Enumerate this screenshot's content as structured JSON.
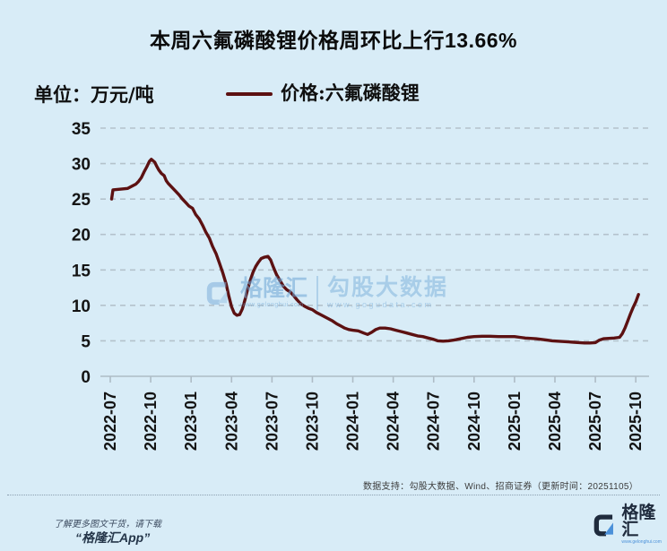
{
  "title": "本周六氟磷酸锂价格周环比上行13.66%",
  "unit_label": "单位：万元/吨",
  "legend": {
    "label": "价格:六氟磷酸锂",
    "line_color": "#5c1112"
  },
  "watermark": {
    "brand": "格隆汇",
    "brand_url": "www.gelonghui.com",
    "partner": "勾股大数据",
    "partner_url": "www.gogudata.com"
  },
  "source_note": "数据支持：勾股大数据、Wind、招商证券（更新时间：20251105）",
  "footer": {
    "promo_line1": "了解更多图文干货，请下载",
    "promo_line2": "“格隆汇App”",
    "brand": "格隆汇",
    "brand_url": "www.gelonghui.com"
  },
  "colors": {
    "background": "#d8ecf7",
    "line": "#5c1112",
    "grid": "#b4c2cc",
    "axis": "#aebcc6",
    "text": "#141414",
    "navy": "#1f2b3d",
    "blue_accent": "#4a90d9"
  },
  "chart_data": {
    "type": "line",
    "title": "本周六氟磷酸锂价格周环比上行13.66%",
    "xlabel": "",
    "ylabel": "单位：万元/吨",
    "ylim": [
      0,
      35
    ],
    "y_ticks": [
      0,
      5,
      10,
      15,
      20,
      25,
      30,
      35
    ],
    "grid": "horizontal-dashed",
    "legend_position": "top",
    "x_ticks": [
      "2022-07",
      "2022-10",
      "2023-01",
      "2023-04",
      "2023-07",
      "2023-10",
      "2024-01",
      "2024-04",
      "2024-07",
      "2024-10",
      "2025-01",
      "2025-04",
      "2025-07",
      "2025-10"
    ],
    "x_tick_months": [
      0,
      3,
      6,
      9,
      12,
      15,
      18,
      21,
      24,
      27,
      30,
      33,
      36,
      39
    ],
    "series": [
      {
        "name": "价格:六氟磷酸锂",
        "color": "#5c1112",
        "points": [
          [
            0.1,
            25.0
          ],
          [
            0.2,
            26.3
          ],
          [
            0.8,
            26.4
          ],
          [
            1.3,
            26.5
          ],
          [
            1.6,
            26.8
          ],
          [
            1.9,
            27.1
          ],
          [
            2.1,
            27.5
          ],
          [
            2.3,
            28.0
          ],
          [
            2.5,
            28.8
          ],
          [
            2.7,
            29.5
          ],
          [
            2.9,
            30.3
          ],
          [
            3.05,
            30.6
          ],
          [
            3.3,
            30.2
          ],
          [
            3.45,
            29.6
          ],
          [
            3.6,
            29.1
          ],
          [
            3.8,
            28.6
          ],
          [
            4.0,
            28.3
          ],
          [
            4.15,
            27.6
          ],
          [
            4.3,
            27.2
          ],
          [
            4.55,
            26.7
          ],
          [
            4.8,
            26.2
          ],
          [
            5.1,
            25.6
          ],
          [
            5.35,
            25.0
          ],
          [
            5.6,
            24.5
          ],
          [
            5.85,
            24.0
          ],
          [
            6.1,
            23.7
          ],
          [
            6.35,
            22.8
          ],
          [
            6.6,
            22.2
          ],
          [
            6.85,
            21.3
          ],
          [
            7.1,
            20.3
          ],
          [
            7.35,
            19.5
          ],
          [
            7.6,
            18.3
          ],
          [
            7.85,
            17.3
          ],
          [
            8.1,
            16.0
          ],
          [
            8.35,
            14.6
          ],
          [
            8.6,
            13.0
          ],
          [
            8.8,
            11.3
          ],
          [
            9.0,
            9.8
          ],
          [
            9.2,
            8.9
          ],
          [
            9.4,
            8.6
          ],
          [
            9.6,
            8.7
          ],
          [
            9.8,
            9.5
          ],
          [
            10.0,
            10.8
          ],
          [
            10.2,
            12.3
          ],
          [
            10.4,
            13.6
          ],
          [
            10.6,
            14.7
          ],
          [
            10.8,
            15.5
          ],
          [
            11.0,
            16.1
          ],
          [
            11.2,
            16.6
          ],
          [
            11.45,
            16.8
          ],
          [
            11.7,
            16.9
          ],
          [
            11.9,
            16.4
          ],
          [
            12.1,
            15.4
          ],
          [
            12.35,
            14.3
          ],
          [
            12.6,
            13.5
          ],
          [
            12.85,
            12.7
          ],
          [
            13.1,
            12.2
          ],
          [
            13.35,
            11.9
          ],
          [
            13.6,
            11.4
          ],
          [
            13.85,
            10.8
          ],
          [
            14.1,
            10.3
          ],
          [
            14.4,
            9.9
          ],
          [
            14.7,
            9.6
          ],
          [
            15.0,
            9.4
          ],
          [
            15.3,
            9.0
          ],
          [
            15.6,
            8.7
          ],
          [
            15.9,
            8.4
          ],
          [
            16.2,
            8.1
          ],
          [
            16.5,
            7.8
          ],
          [
            16.8,
            7.4
          ],
          [
            17.1,
            7.1
          ],
          [
            17.4,
            6.8
          ],
          [
            17.7,
            6.6
          ],
          [
            18.0,
            6.5
          ],
          [
            18.4,
            6.4
          ],
          [
            18.8,
            6.1
          ],
          [
            19.1,
            5.9
          ],
          [
            19.4,
            6.2
          ],
          [
            19.7,
            6.6
          ],
          [
            20.0,
            6.8
          ],
          [
            20.4,
            6.8
          ],
          [
            20.8,
            6.7
          ],
          [
            21.2,
            6.5
          ],
          [
            21.6,
            6.3
          ],
          [
            22.0,
            6.1
          ],
          [
            22.4,
            5.9
          ],
          [
            22.8,
            5.7
          ],
          [
            23.2,
            5.6
          ],
          [
            23.6,
            5.4
          ],
          [
            24.0,
            5.2
          ],
          [
            24.3,
            5.0
          ],
          [
            24.7,
            4.95
          ],
          [
            25.1,
            5.0
          ],
          [
            25.5,
            5.1
          ],
          [
            26.0,
            5.3
          ],
          [
            26.5,
            5.5
          ],
          [
            27.0,
            5.6
          ],
          [
            27.6,
            5.65
          ],
          [
            28.2,
            5.65
          ],
          [
            28.8,
            5.6
          ],
          [
            29.4,
            5.6
          ],
          [
            30.0,
            5.6
          ],
          [
            30.4,
            5.5
          ],
          [
            30.8,
            5.4
          ],
          [
            31.2,
            5.35
          ],
          [
            31.6,
            5.3
          ],
          [
            32.0,
            5.2
          ],
          [
            32.4,
            5.1
          ],
          [
            32.8,
            5.0
          ],
          [
            33.2,
            4.95
          ],
          [
            33.6,
            4.9
          ],
          [
            34.0,
            4.85
          ],
          [
            34.4,
            4.8
          ],
          [
            34.8,
            4.75
          ],
          [
            35.2,
            4.7
          ],
          [
            35.6,
            4.7
          ],
          [
            36.0,
            4.75
          ],
          [
            36.3,
            5.1
          ],
          [
            36.6,
            5.3
          ],
          [
            37.0,
            5.35
          ],
          [
            37.4,
            5.4
          ],
          [
            37.8,
            5.5
          ],
          [
            38.0,
            6.0
          ],
          [
            38.2,
            6.8
          ],
          [
            38.4,
            7.8
          ],
          [
            38.6,
            8.8
          ],
          [
            38.8,
            9.7
          ],
          [
            39.0,
            10.5
          ],
          [
            39.2,
            11.54
          ]
        ]
      }
    ]
  }
}
